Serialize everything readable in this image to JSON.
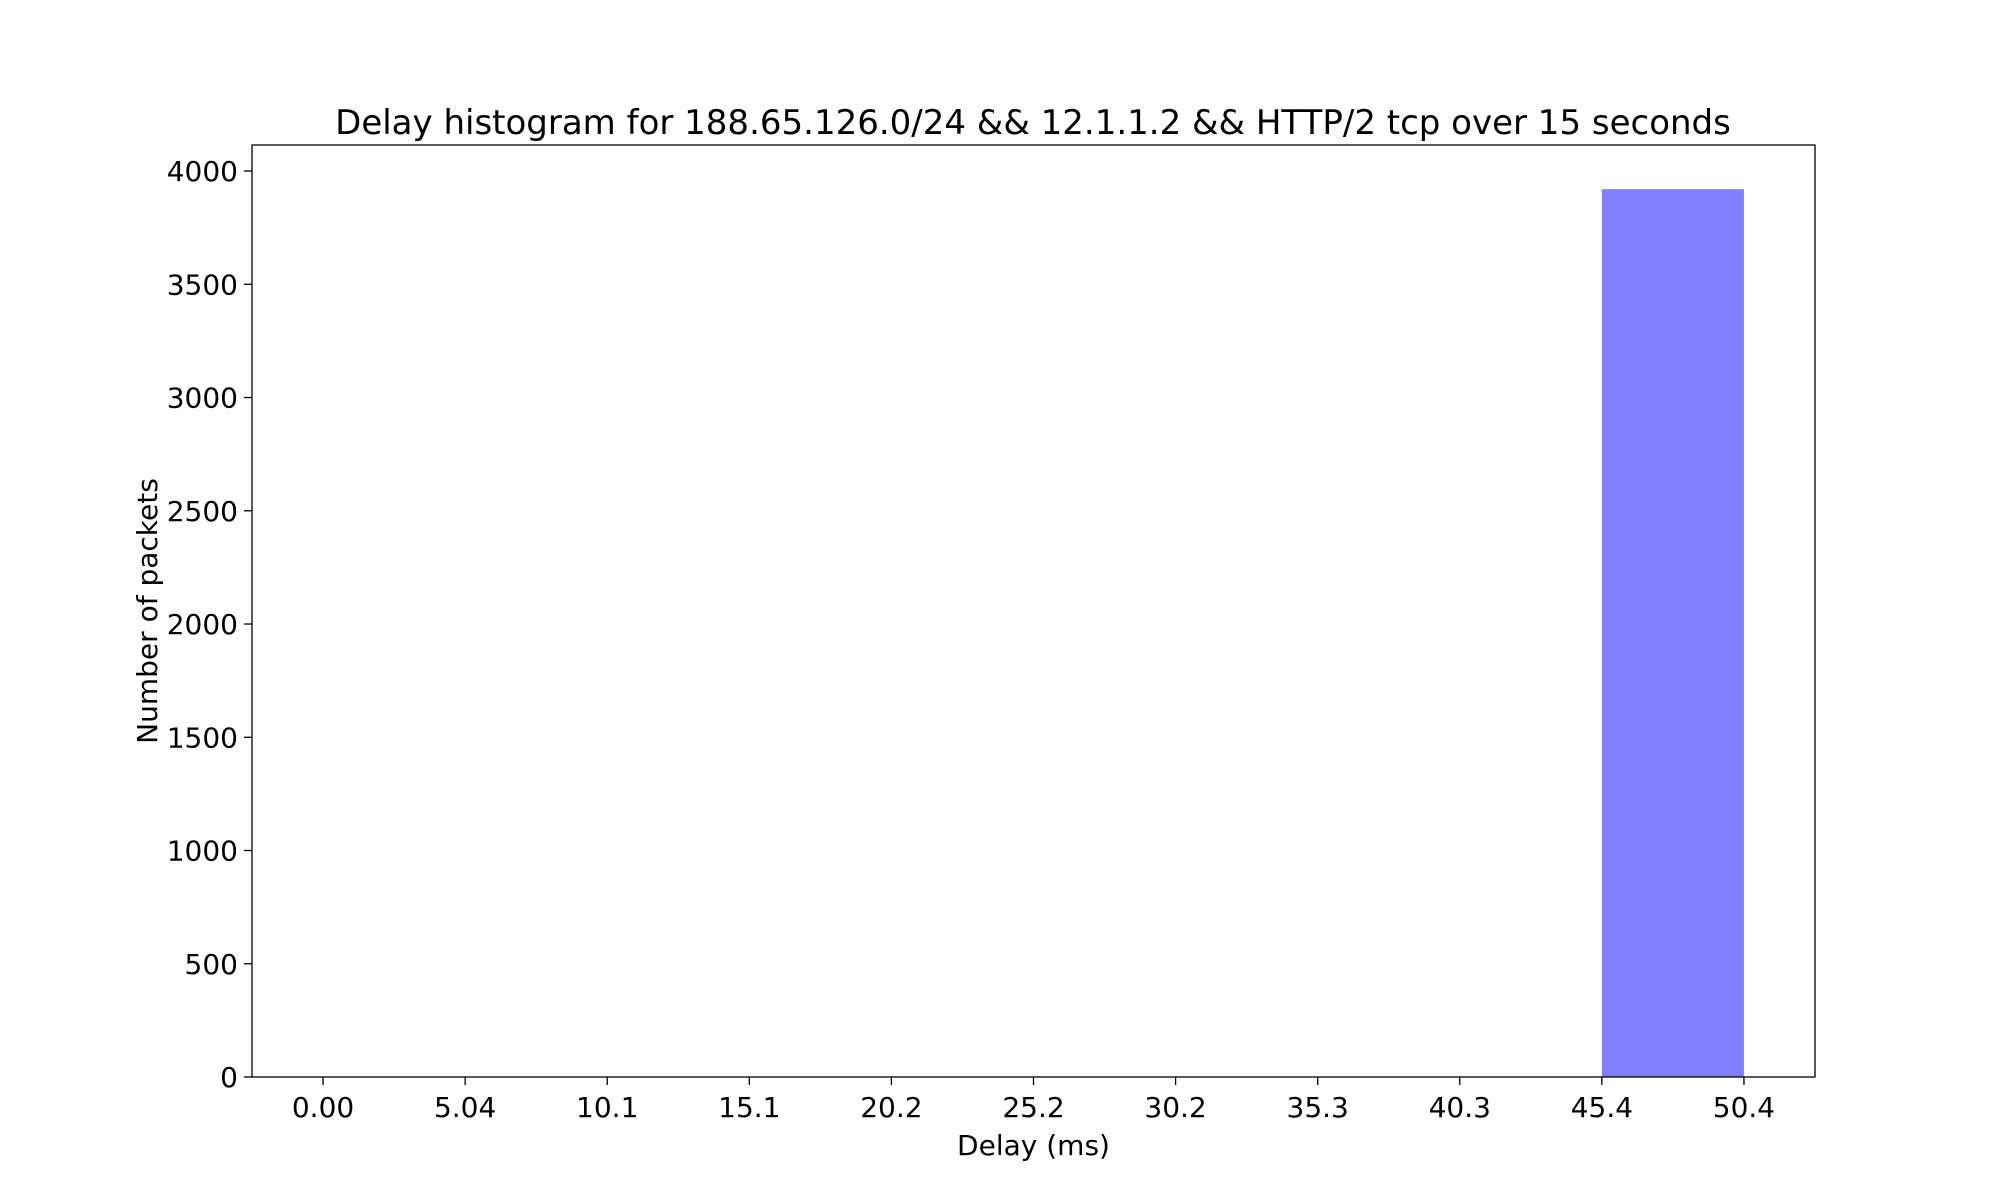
{
  "chart_data": {
    "type": "bar",
    "title": "Delay histogram for 188.65.126.0/24 && 12.1.1.2 && HTTP/2 tcp over 15 seconds",
    "xlabel": "Delay (ms)",
    "ylabel": "Number of packets",
    "x_tick_labels": [
      "0.00",
      "5.04",
      "10.1",
      "15.1",
      "20.2",
      "25.2",
      "30.2",
      "35.3",
      "40.3",
      "45.4",
      "50.4"
    ],
    "x_tick_values": [
      0.0,
      5.04,
      10.08,
      15.12,
      20.16,
      25.2,
      30.24,
      35.28,
      40.32,
      45.36,
      50.4
    ],
    "xlim": [
      -2.52,
      52.92
    ],
    "ylim": [
      0,
      4115
    ],
    "y_ticks": [
      0,
      500,
      1000,
      1500,
      2000,
      2500,
      3000,
      3500,
      4000
    ],
    "bins": [
      {
        "start": 45.36,
        "end": 50.4,
        "count": 3920
      }
    ],
    "bar_color": "#8080ff",
    "grid": false,
    "legend": "none"
  }
}
